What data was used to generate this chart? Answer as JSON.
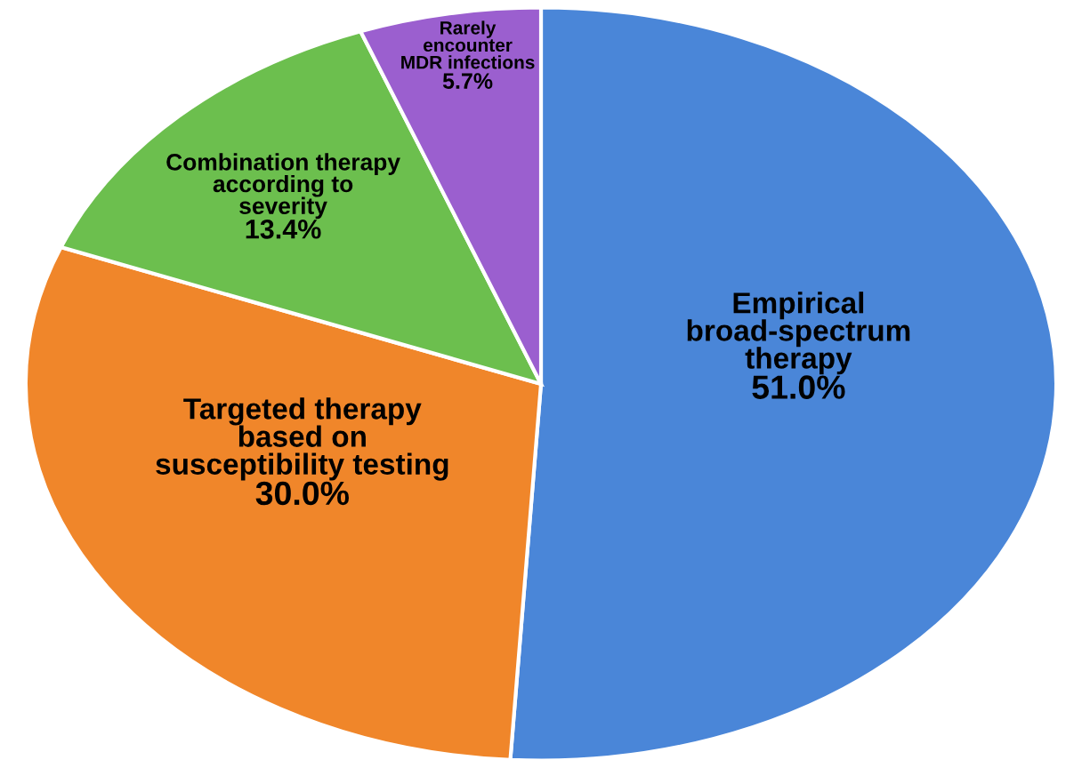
{
  "chart_data": {
    "type": "pie",
    "categories": [
      "Empirical\nbroad-spectrum\ntherapy",
      "Targeted therapy\nbased on\nsusceptibility testing",
      "Combination therapy\naccording to\nseverity",
      "Rarely\nencounter\nMDR infections"
    ],
    "values": [
      51.0,
      30.0,
      13.4,
      5.7
    ],
    "value_labels": [
      "51.0%",
      "30.0%",
      "13.4%",
      "5.7%"
    ],
    "colors": [
      "#4a86d8",
      "#f0862a",
      "#6cbf4e",
      "#9b5fcf"
    ]
  }
}
